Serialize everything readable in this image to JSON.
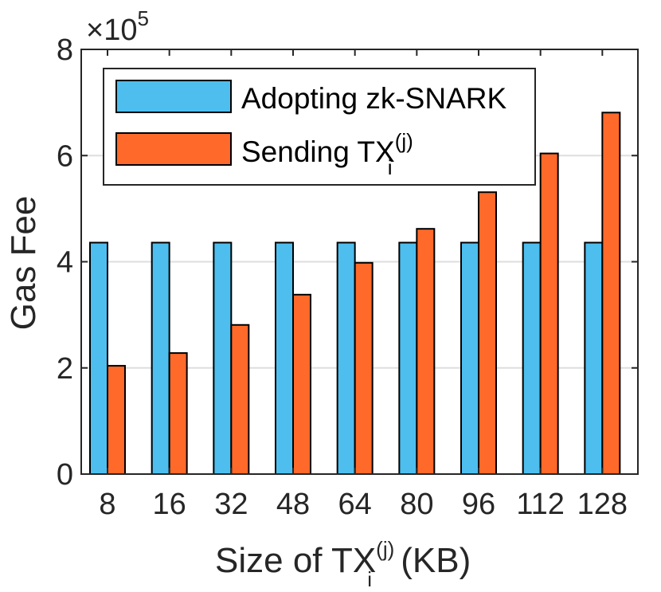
{
  "chart_data": {
    "type": "bar",
    "categories": [
      "8",
      "16",
      "32",
      "48",
      "64",
      "80",
      "96",
      "112",
      "128"
    ],
    "series": [
      {
        "name": "Adopting zk-SNARK",
        "values": [
          4.36,
          4.36,
          4.36,
          4.36,
          4.36,
          4.36,
          4.36,
          4.36,
          4.36
        ],
        "color": "#4DBEEE"
      },
      {
        "name": "Sending TX",
        "name_sup": "(j)",
        "name_sub": "i",
        "values": [
          2.04,
          2.28,
          2.81,
          3.38,
          3.98,
          4.62,
          5.31,
          6.04,
          6.81
        ],
        "color": "#FF6929"
      }
    ],
    "ylim": [
      0,
      8
    ],
    "yticks": [
      "0",
      "2",
      "4",
      "6",
      "8"
    ],
    "yscale_base": "×10",
    "yscale_exp": "5",
    "ylabel": "Gas Fee",
    "xlabel_pre": "Size of TX",
    "xlabel_sup": "(j)",
    "xlabel_sub": "i",
    "xlabel_post": " (KB)",
    "grid": "horizontal",
    "legend_position": "top-left"
  }
}
